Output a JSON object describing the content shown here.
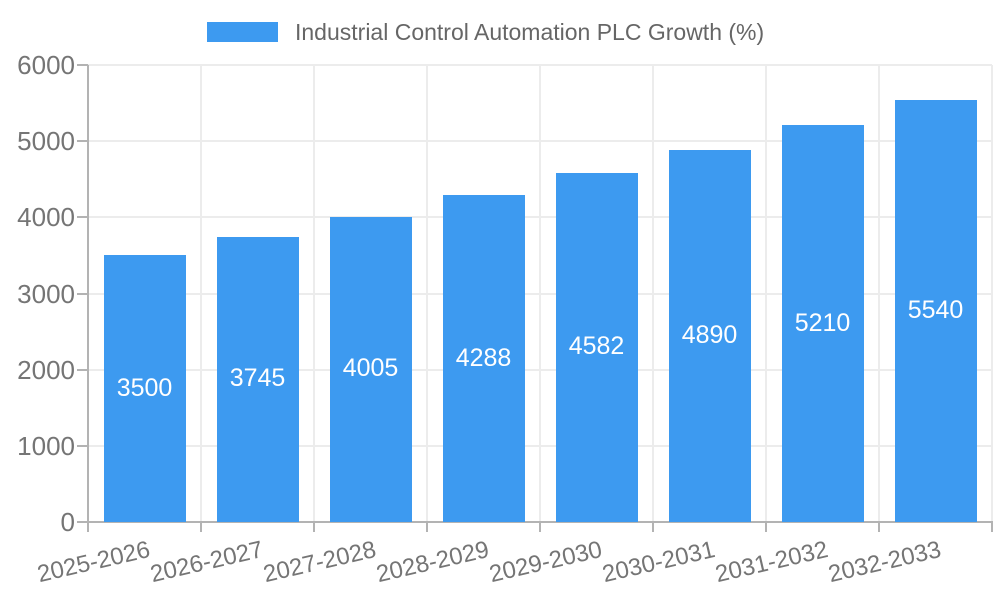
{
  "legend": {
    "label": "Industrial Control Automation PLC Growth (%)"
  },
  "chart_data": {
    "type": "bar",
    "title": "Industrial Control Automation PLC Growth (%)",
    "legend_entries": [
      "Industrial Control Automation PLC Growth (%)"
    ],
    "legend_position": "top",
    "categories": [
      "2025-2026",
      "2026-2027",
      "2027-2028",
      "2028-2029",
      "2029-2030",
      "2030-2031",
      "2031-2032",
      "2032-2033"
    ],
    "values": [
      3500,
      3745,
      4005,
      4288,
      4582,
      4890,
      5210,
      5540
    ],
    "value_labels": [
      "3500",
      "3745",
      "4005",
      "4288",
      "4582",
      "4890",
      "5210",
      "5540"
    ],
    "xlabel": "",
    "ylabel": "",
    "ylim": [
      0,
      6000
    ],
    "yticks": [
      0,
      1000,
      2000,
      3000,
      4000,
      5000,
      6000
    ],
    "grid": true,
    "bar_color": "#3d9af0",
    "value_label_color": "#ffffff",
    "axis_text_color": "#757575",
    "gridline_color": "#ececec",
    "axis_line_color": "#b3b3b3"
  }
}
